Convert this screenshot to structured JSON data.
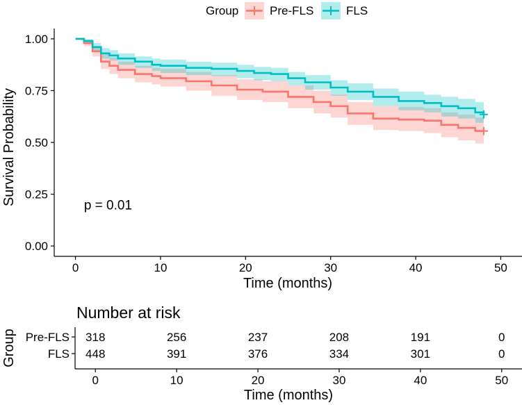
{
  "chart_data": {
    "type": "line",
    "subtype": "kaplan-meier",
    "legend": {
      "title": "Group",
      "position": "top",
      "entries": [
        "Pre-FLS",
        "FLS"
      ]
    },
    "xlabel": "Time (months)",
    "ylabel": "Survival Probability",
    "xlim": [
      -2.5,
      52.5
    ],
    "ylim": [
      -0.05,
      1.05
    ],
    "x_ticks": [
      0,
      10,
      20,
      30,
      40,
      50
    ],
    "x_tick_labels": [
      "0",
      "10",
      "20",
      "30",
      "40",
      "50"
    ],
    "y_ticks": [
      0.0,
      0.25,
      0.5,
      0.75,
      1.0
    ],
    "y_tick_labels": [
      "0.00",
      "0.25",
      "0.50",
      "0.75",
      "1.00"
    ],
    "annotation": "p = 0.01",
    "annotation_pos": [
      1,
      0.2
    ],
    "series": [
      {
        "name": "Pre-FLS",
        "color": "#F8766D",
        "fill": "#F8766D",
        "points": [
          [
            0,
            1.0
          ],
          [
            1,
            0.98
          ],
          [
            2,
            0.94
          ],
          [
            3,
            0.89
          ],
          [
            4,
            0.87
          ],
          [
            5,
            0.85
          ],
          [
            7,
            0.83
          ],
          [
            9,
            0.82
          ],
          [
            10,
            0.81
          ],
          [
            13,
            0.795
          ],
          [
            16,
            0.775
          ],
          [
            19,
            0.755
          ],
          [
            22,
            0.745
          ],
          [
            25,
            0.72
          ],
          [
            28,
            0.695
          ],
          [
            30,
            0.675
          ],
          [
            32,
            0.64
          ],
          [
            35,
            0.615
          ],
          [
            38,
            0.61
          ],
          [
            41,
            0.605
          ],
          [
            43,
            0.585
          ],
          [
            45,
            0.57
          ],
          [
            47,
            0.555
          ],
          [
            48,
            0.555
          ]
        ],
        "ci_upper": [
          [
            0,
            1.0
          ],
          [
            1,
            0.995
          ],
          [
            2,
            0.965
          ],
          [
            3,
            0.925
          ],
          [
            4,
            0.91
          ],
          [
            5,
            0.89
          ],
          [
            7,
            0.87
          ],
          [
            9,
            0.86
          ],
          [
            10,
            0.855
          ],
          [
            13,
            0.84
          ],
          [
            16,
            0.825
          ],
          [
            19,
            0.805
          ],
          [
            22,
            0.795
          ],
          [
            25,
            0.775
          ],
          [
            28,
            0.75
          ],
          [
            30,
            0.73
          ],
          [
            32,
            0.695
          ],
          [
            35,
            0.675
          ],
          [
            38,
            0.67
          ],
          [
            41,
            0.665
          ],
          [
            43,
            0.645
          ],
          [
            45,
            0.635
          ],
          [
            47,
            0.62
          ],
          [
            48,
            0.62
          ]
        ],
        "ci_lower": [
          [
            0,
            1.0
          ],
          [
            1,
            0.965
          ],
          [
            2,
            0.915
          ],
          [
            3,
            0.855
          ],
          [
            4,
            0.83
          ],
          [
            5,
            0.81
          ],
          [
            7,
            0.79
          ],
          [
            9,
            0.78
          ],
          [
            10,
            0.77
          ],
          [
            13,
            0.75
          ],
          [
            16,
            0.725
          ],
          [
            19,
            0.705
          ],
          [
            22,
            0.695
          ],
          [
            25,
            0.665
          ],
          [
            28,
            0.64
          ],
          [
            30,
            0.62
          ],
          [
            32,
            0.585
          ],
          [
            35,
            0.56
          ],
          [
            38,
            0.555
          ],
          [
            41,
            0.545
          ],
          [
            43,
            0.525
          ],
          [
            45,
            0.51
          ],
          [
            47,
            0.495
          ],
          [
            48,
            0.495
          ]
        ],
        "censor_mark": [
          48,
          0.555
        ]
      },
      {
        "name": "FLS",
        "color": "#00BFC4",
        "fill": "#00BFC4",
        "points": [
          [
            0,
            1.0
          ],
          [
            1,
            0.99
          ],
          [
            2,
            0.96
          ],
          [
            3,
            0.93
          ],
          [
            4,
            0.92
          ],
          [
            5,
            0.905
          ],
          [
            7,
            0.89
          ],
          [
            9,
            0.875
          ],
          [
            10,
            0.87
          ],
          [
            13,
            0.86
          ],
          [
            16,
            0.855
          ],
          [
            19,
            0.845
          ],
          [
            21,
            0.835
          ],
          [
            23,
            0.83
          ],
          [
            25,
            0.81
          ],
          [
            27,
            0.79
          ],
          [
            30,
            0.765
          ],
          [
            32,
            0.745
          ],
          [
            35,
            0.72
          ],
          [
            38,
            0.7
          ],
          [
            41,
            0.69
          ],
          [
            43,
            0.675
          ],
          [
            45,
            0.665
          ],
          [
            47,
            0.645
          ],
          [
            48,
            0.635
          ]
        ],
        "ci_upper": [
          [
            0,
            1.0
          ],
          [
            1,
            0.998
          ],
          [
            2,
            0.98
          ],
          [
            3,
            0.955
          ],
          [
            4,
            0.945
          ],
          [
            5,
            0.93
          ],
          [
            7,
            0.915
          ],
          [
            9,
            0.905
          ],
          [
            10,
            0.9
          ],
          [
            13,
            0.89
          ],
          [
            16,
            0.885
          ],
          [
            19,
            0.875
          ],
          [
            21,
            0.865
          ],
          [
            23,
            0.86
          ],
          [
            25,
            0.84
          ],
          [
            27,
            0.825
          ],
          [
            30,
            0.8
          ],
          [
            32,
            0.785
          ],
          [
            35,
            0.76
          ],
          [
            38,
            0.745
          ],
          [
            41,
            0.73
          ],
          [
            43,
            0.72
          ],
          [
            45,
            0.71
          ],
          [
            47,
            0.695
          ],
          [
            48,
            0.69
          ]
        ],
        "ci_lower": [
          [
            0,
            1.0
          ],
          [
            1,
            0.98
          ],
          [
            2,
            0.94
          ],
          [
            3,
            0.905
          ],
          [
            4,
            0.895
          ],
          [
            5,
            0.875
          ],
          [
            7,
            0.86
          ],
          [
            9,
            0.845
          ],
          [
            10,
            0.835
          ],
          [
            13,
            0.825
          ],
          [
            16,
            0.82
          ],
          [
            19,
            0.81
          ],
          [
            21,
            0.8
          ],
          [
            23,
            0.795
          ],
          [
            25,
            0.775
          ],
          [
            27,
            0.755
          ],
          [
            30,
            0.725
          ],
          [
            32,
            0.705
          ],
          [
            35,
            0.675
          ],
          [
            38,
            0.655
          ],
          [
            41,
            0.645
          ],
          [
            43,
            0.625
          ],
          [
            45,
            0.615
          ],
          [
            47,
            0.595
          ],
          [
            48,
            0.58
          ]
        ],
        "censor_mark": [
          48,
          0.635
        ]
      }
    ],
    "risk_table": {
      "title": "Number at risk",
      "ylabel": "Group",
      "xlabel": "Time (months)",
      "times": [
        0,
        10,
        20,
        30,
        40,
        50
      ],
      "time_labels": [
        "0",
        "10",
        "20",
        "30",
        "40",
        "50"
      ],
      "rows": [
        {
          "name": "Pre-FLS",
          "color": "#F8766D",
          "counts": [
            "318",
            "256",
            "237",
            "208",
            "191",
            "0"
          ]
        },
        {
          "name": "FLS",
          "color": "#00BFC4",
          "counts": [
            "448",
            "391",
            "376",
            "334",
            "301",
            "0"
          ]
        }
      ]
    }
  }
}
